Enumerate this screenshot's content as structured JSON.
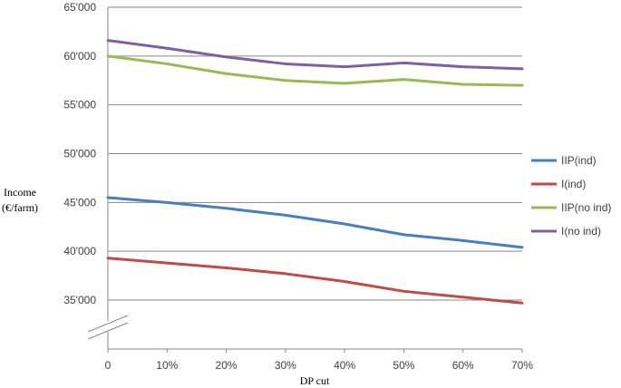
{
  "chart_data": {
    "type": "line",
    "categories": [
      "0",
      "10%",
      "20%",
      "30%",
      "40%",
      "50%",
      "60%",
      "70%"
    ],
    "xlabel": "DP cut",
    "ylabel_lines": [
      "Income",
      "(€/farm)"
    ],
    "y_tick_labels": [
      "35'000",
      "40'000",
      "45'000",
      "50'000",
      "55'000",
      "60'000",
      "65'000"
    ],
    "y_ticks": [
      35000,
      40000,
      45000,
      50000,
      55000,
      60000,
      65000
    ],
    "ylim": [
      35000,
      65000
    ],
    "axis_break": true,
    "grid": true,
    "legend": "right",
    "series": [
      {
        "name": "IIP(ind)",
        "color": "#4a7ebb",
        "values": [
          45500,
          45000,
          44400,
          43700,
          42800,
          41700,
          41100,
          40400
        ]
      },
      {
        "name": "I(ind)",
        "color": "#be4b48",
        "values": [
          39300,
          38800,
          38300,
          37700,
          36900,
          35900,
          35300,
          34700
        ]
      },
      {
        "name": "IIP(no ind)",
        "color": "#98b954",
        "values": [
          60000,
          59200,
          58200,
          57500,
          57200,
          57600,
          57100,
          57000
        ]
      },
      {
        "name": "I(no ind)",
        "color": "#7d60a0",
        "values": [
          61600,
          60800,
          59900,
          59200,
          58900,
          59300,
          58900,
          58700
        ]
      }
    ]
  }
}
